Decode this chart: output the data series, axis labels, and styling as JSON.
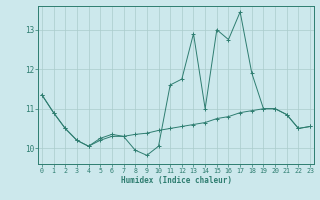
{
  "xlabel": "Humidex (Indice chaleur)",
  "x": [
    0,
    1,
    2,
    3,
    4,
    5,
    6,
    7,
    8,
    9,
    10,
    11,
    12,
    13,
    14,
    15,
    16,
    17,
    18,
    19,
    20,
    21,
    22,
    23
  ],
  "line1": [
    11.35,
    10.9,
    10.5,
    10.2,
    10.05,
    10.2,
    10.3,
    10.3,
    9.95,
    9.82,
    10.05,
    11.6,
    11.75,
    12.9,
    11.0,
    13.0,
    12.75,
    13.45,
    11.9,
    11.0,
    11.0,
    10.85,
    10.5,
    10.55
  ],
  "line2": [
    11.35,
    10.9,
    10.5,
    10.2,
    10.05,
    10.25,
    10.35,
    10.3,
    10.35,
    10.38,
    10.45,
    10.5,
    10.55,
    10.6,
    10.65,
    10.75,
    10.8,
    10.9,
    10.95,
    11.0,
    11.0,
    10.85,
    10.5,
    10.55
  ],
  "line_color": "#2e7d70",
  "bg_color": "#cce8ec",
  "grid_color": "#aacccc",
  "ylim": [
    9.6,
    13.6
  ],
  "yticks": [
    10,
    11,
    12,
    13
  ],
  "xticks": [
    0,
    1,
    2,
    3,
    4,
    5,
    6,
    7,
    8,
    9,
    10,
    11,
    12,
    13,
    14,
    15,
    16,
    17,
    18,
    19,
    20,
    21,
    22,
    23
  ]
}
